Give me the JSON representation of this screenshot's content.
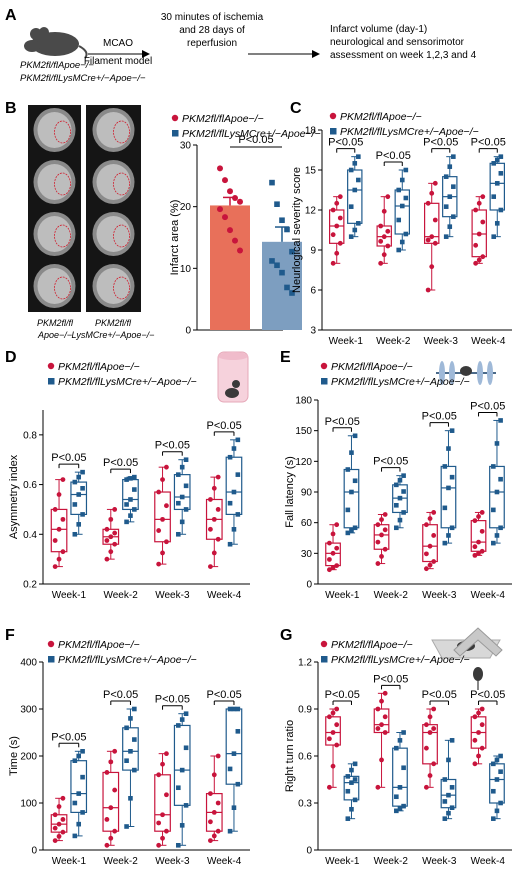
{
  "colors": {
    "red": "#c8143c",
    "blue": "#1f5a8c",
    "red_bar": "#e8705a",
    "blue_bar": "#7d9ec0"
  },
  "panel_a": {
    "letter": "A",
    "mouse_lines": [
      "PKM2fl/flApoe−/−",
      "PKM2fl/flLysMCre+/−Apoe−/−"
    ],
    "step1": [
      "MCAO",
      "Filament model"
    ],
    "step2": [
      "30 minutes of ischemia",
      "and 28 days of",
      "reperfusion"
    ],
    "step3": [
      "Infarct volume (day-1)",
      "neurological and sensorimotor",
      "assessment on week 1,2,3 and 4"
    ]
  },
  "panel_b_images": {
    "letter": "B",
    "caption1": [
      "PKM2fl/fl",
      "Apoe−/−"
    ],
    "caption2": [
      "PKM2fl/fl",
      "LysMCre+/−Apoe−/−"
    ]
  },
  "legend": {
    "red": "PKM2fl/flApoe−/−",
    "blue": "PKM2fl/flLysMCre+/−Apoe−/−"
  },
  "chart_data": [
    {
      "panel": "B",
      "type": "bar",
      "ylabel": "Infarct area (%)",
      "ylim": [
        0,
        30
      ],
      "yticks": [
        0,
        10,
        20,
        30
      ],
      "categories": [
        "PKM2fl/flApoe−/−",
        "PKM2fl/flLysMCre+/−Apoe−/−"
      ],
      "values": [
        20.2,
        14.3
      ],
      "sem": [
        1.3,
        2.4
      ],
      "points": [
        [
          26.2,
          24.3,
          22.5,
          21.4,
          20.8,
          19.6,
          18.3,
          16.2,
          14.5,
          12.9
        ],
        [
          23.9,
          20.4,
          17.8,
          16.3,
          12.7,
          11.2,
          10.5,
          9.3,
          6.9,
          6.0
        ]
      ],
      "annotations": [
        {
          "text": "P<0.05"
        }
      ]
    },
    {
      "panel": "C",
      "type": "box",
      "ylabel": "Neurlogical severity score",
      "ylim": [
        3,
        18
      ],
      "yticks": [
        3,
        6,
        9,
        12,
        15,
        18
      ],
      "categories": [
        "Week-1",
        "Week-2",
        "Week-3",
        "Week-4"
      ],
      "series": [
        {
          "boxes": [
            [
              8,
              9.5,
              10.8,
              12,
              13
            ],
            [
              8,
              9.3,
              10,
              10.8,
              13
            ],
            [
              6,
              9.5,
              10,
              12.5,
              14
            ],
            [
              8,
              8.5,
              10.2,
              12,
              13
            ]
          ]
        },
        {
          "boxes": [
            [
              10,
              11,
              13.5,
              15,
              16
            ],
            [
              9,
              10.2,
              12.3,
              13.5,
              15
            ],
            [
              10,
              11.5,
              13,
              14.5,
              16
            ],
            [
              10,
              12,
              14,
              15.5,
              16
            ]
          ]
        }
      ],
      "annotations": [
        {
          "text": "P<0.05"
        },
        {
          "text": "P<0.05"
        },
        {
          "text": "P<0.05"
        },
        {
          "text": "P<0.05"
        }
      ]
    },
    {
      "panel": "D",
      "type": "box",
      "ylabel": "Asymmetry index",
      "ylim": [
        0.2,
        0.9
      ],
      "yticks": [
        0.2,
        0.4,
        0.6,
        0.8
      ],
      "categories": [
        "Week-1",
        "Week-2",
        "Week-3",
        "Week-4"
      ],
      "series": [
        {
          "boxes": [
            [
              0.27,
              0.33,
              0.42,
              0.5,
              0.62
            ],
            [
              0.3,
              0.36,
              0.39,
              0.42,
              0.5
            ],
            [
              0.28,
              0.37,
              0.46,
              0.57,
              0.67
            ],
            [
              0.27,
              0.38,
              0.46,
              0.54,
              0.63
            ]
          ]
        },
        {
          "boxes": [
            [
              0.4,
              0.48,
              0.56,
              0.61,
              0.65
            ],
            [
              0.45,
              0.5,
              0.54,
              0.62,
              0.63
            ],
            [
              0.4,
              0.5,
              0.55,
              0.64,
              0.7
            ],
            [
              0.36,
              0.48,
              0.57,
              0.71,
              0.78
            ]
          ]
        }
      ],
      "annotations": [
        {
          "text": "P<0.05"
        },
        {
          "text": "P<0.05"
        },
        {
          "text": "P<0.05"
        },
        {
          "text": "P<0.05"
        }
      ]
    },
    {
      "panel": "E",
      "type": "box",
      "ylabel": "Fall latency (s)",
      "ylim": [
        0,
        180
      ],
      "yticks": [
        0,
        30,
        60,
        90,
        120,
        150,
        180
      ],
      "categories": [
        "Week-1",
        "Week-2",
        "Week-3",
        "Week-4"
      ],
      "series": [
        {
          "boxes": [
            [
              14,
              18,
              30,
              40,
              58
            ],
            [
              20,
              34,
              48,
              58,
              68
            ],
            [
              15,
              22,
              37,
              58,
              70
            ],
            [
              28,
              32,
              41,
              62,
              70
            ]
          ]
        },
        {
          "boxes": [
            [
              50,
              55,
              90,
              112,
              145
            ],
            [
              55,
              70,
              84,
              97,
              106
            ],
            [
              40,
              55,
              94,
              115,
              150
            ],
            [
              40,
              55,
              90,
              115,
              160
            ]
          ]
        }
      ],
      "annotations": [
        {
          "text": "P<0.05"
        },
        {
          "text": "P<0.05"
        },
        {
          "text": "P<0.05"
        },
        {
          "text": "P<0.05"
        }
      ]
    },
    {
      "panel": "F",
      "type": "box",
      "ylabel": "Time (s)",
      "ylim": [
        0,
        400
      ],
      "yticks": [
        0,
        100,
        200,
        300,
        400
      ],
      "categories": [
        "Week-1",
        "Week-2",
        "Week-3",
        "Week-4"
      ],
      "series": [
        {
          "boxes": [
            [
              20,
              38,
              55,
              75,
              110
            ],
            [
              10,
              40,
              90,
              165,
              210
            ],
            [
              10,
              40,
              75,
              160,
              205
            ],
            [
              20,
              40,
              80,
              120,
              200
            ]
          ]
        },
        {
          "boxes": [
            [
              30,
              80,
              120,
              190,
              210
            ],
            [
              50,
              170,
              210,
              260,
              300
            ],
            [
              10,
              95,
              170,
              265,
              290
            ],
            [
              40,
              140,
              205,
              300,
              300
            ]
          ]
        }
      ],
      "annotations": [
        {
          "text": "P<0.05"
        },
        {
          "text": "P<0.05"
        },
        {
          "text": "P<0.05"
        },
        {
          "text": "P<0.05"
        }
      ]
    },
    {
      "panel": "G",
      "type": "box",
      "ylabel": "Right turn ratio",
      "ylim": [
        0,
        1.2
      ],
      "yticks": [
        0,
        0.3,
        0.6,
        0.9,
        1.2
      ],
      "categories": [
        "Week-1",
        "Week-2",
        "Week-3",
        "Week-4"
      ],
      "series": [
        {
          "boxes": [
            [
              0.4,
              0.67,
              0.75,
              0.85,
              0.9
            ],
            [
              0.4,
              0.75,
              0.8,
              0.9,
              1.0
            ],
            [
              0.4,
              0.55,
              0.75,
              0.8,
              0.9
            ],
            [
              0.55,
              0.65,
              0.75,
              0.85,
              0.9
            ]
          ]
        },
        {
          "boxes": [
            [
              0.2,
              0.32,
              0.43,
              0.47,
              0.55
            ],
            [
              0.25,
              0.28,
              0.4,
              0.65,
              0.75
            ],
            [
              0.2,
              0.27,
              0.35,
              0.45,
              0.7
            ],
            [
              0.2,
              0.3,
              0.45,
              0.55,
              0.6
            ]
          ]
        }
      ],
      "annotations": [
        {
          "text": "P<0.05"
        },
        {
          "text": "P<0.05"
        },
        {
          "text": "P<0.05"
        },
        {
          "text": "P<0.05"
        }
      ]
    }
  ]
}
